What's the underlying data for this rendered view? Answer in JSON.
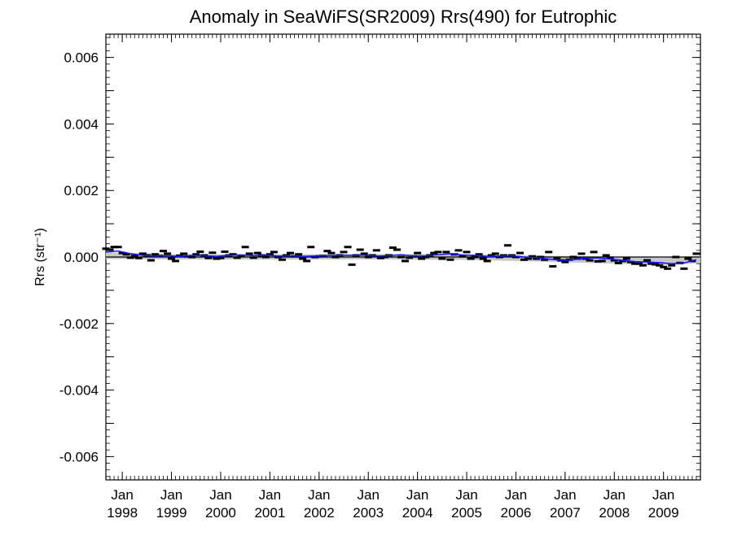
{
  "chart_data": {
    "type": "line",
    "title": "Anomaly in SeaWiFS(SR2009) Rrs(490) for Eutrophic",
    "ylabel": "Rrs (str⁻¹)",
    "xlabel": "",
    "xlim": [
      "1997-09",
      "2009-10"
    ],
    "ylim": [
      -0.0067,
      0.0067
    ],
    "yticks": [
      -0.006,
      -0.004,
      -0.002,
      0.0,
      0.002,
      0.004,
      0.006
    ],
    "ytick_labels": [
      "-0.006",
      "-0.004",
      "-0.002",
      "0.000",
      "0.002",
      "0.004",
      "0.006"
    ],
    "xticks": [
      {
        "date": "1998-01",
        "line1": "Jan",
        "line2": "1998"
      },
      {
        "date": "1999-01",
        "line1": "Jan",
        "line2": "1999"
      },
      {
        "date": "2000-01",
        "line1": "Jan",
        "line2": "2000"
      },
      {
        "date": "2001-01",
        "line1": "Jan",
        "line2": "2001"
      },
      {
        "date": "2002-01",
        "line1": "Jan",
        "line2": "2002"
      },
      {
        "date": "2003-01",
        "line1": "Jan",
        "line2": "2003"
      },
      {
        "date": "2004-01",
        "line1": "Jan",
        "line2": "2004"
      },
      {
        "date": "2005-01",
        "line1": "Jan",
        "line2": "2005"
      },
      {
        "date": "2006-01",
        "line1": "Jan",
        "line2": "2006"
      },
      {
        "date": "2007-01",
        "line1": "Jan",
        "line2": "2007"
      },
      {
        "date": "2008-01",
        "line1": "Jan",
        "line2": "2008"
      },
      {
        "date": "2009-01",
        "line1": "Jan",
        "line2": "2009"
      }
    ],
    "grid": false,
    "zero_line": true,
    "band": {
      "color": "#c8c8c8",
      "x": [
        "1997-09",
        "1999-01",
        "2001-01",
        "2003-01",
        "2005-01",
        "2006-01",
        "2007-01",
        "2008-01",
        "2009-01",
        "2009-10"
      ],
      "upper": [
        0.00014,
        9e-05,
        8e-05,
        9e-05,
        8e-05,
        5e-05,
        3e-05,
        1e-05,
        -2e-05,
        4e-05
      ],
      "lower": [
        -6e-05,
        -7e-05,
        -8e-05,
        -7e-05,
        -9e-05,
        -0.00012,
        -0.00016,
        -0.0002,
        -0.00024,
        -0.00018
      ]
    },
    "series": [
      {
        "style": "marker",
        "color": "#000000",
        "x": [
          "1997-09",
          "1997-10",
          "1997-11",
          "1997-12",
          "1998-01",
          "1998-02",
          "1998-03",
          "1998-04",
          "1998-05",
          "1998-06",
          "1998-07",
          "1998-08",
          "1998-09",
          "1998-10",
          "1998-11",
          "1998-12",
          "1999-01",
          "1999-02",
          "1999-03",
          "1999-04",
          "1999-05",
          "1999-06",
          "1999-07",
          "1999-08",
          "1999-09",
          "1999-10",
          "1999-11",
          "1999-12",
          "2000-01",
          "2000-02",
          "2000-03",
          "2000-04",
          "2000-05",
          "2000-06",
          "2000-07",
          "2000-08",
          "2000-09",
          "2000-10",
          "2000-11",
          "2000-12",
          "2001-01",
          "2001-02",
          "2001-03",
          "2001-04",
          "2001-05",
          "2001-06",
          "2001-07",
          "2001-08",
          "2001-09",
          "2001-10",
          "2001-11",
          "2001-12",
          "2002-01",
          "2002-02",
          "2002-03",
          "2002-04",
          "2002-05",
          "2002-06",
          "2002-07",
          "2002-08",
          "2002-09",
          "2002-10",
          "2002-11",
          "2002-12",
          "2003-01",
          "2003-02",
          "2003-03",
          "2003-04",
          "2003-05",
          "2003-06",
          "2003-07",
          "2003-08",
          "2003-09",
          "2003-10",
          "2003-11",
          "2003-12",
          "2004-01",
          "2004-02",
          "2004-03",
          "2004-04",
          "2004-05",
          "2004-06",
          "2004-07",
          "2004-08",
          "2004-09",
          "2004-10",
          "2004-11",
          "2004-12",
          "2005-01",
          "2005-02",
          "2005-03",
          "2005-04",
          "2005-05",
          "2005-06",
          "2005-07",
          "2005-08",
          "2005-09",
          "2005-10",
          "2005-11",
          "2005-12",
          "2006-01",
          "2006-02",
          "2006-03",
          "2006-04",
          "2006-05",
          "2006-06",
          "2006-07",
          "2006-08",
          "2006-09",
          "2006-10",
          "2006-11",
          "2006-12",
          "2007-01",
          "2007-02",
          "2007-03",
          "2007-04",
          "2007-05",
          "2007-06",
          "2007-07",
          "2007-08",
          "2007-09",
          "2007-10",
          "2007-11",
          "2007-12",
          "2008-01",
          "2008-02",
          "2008-03",
          "2008-04",
          "2008-05",
          "2008-06",
          "2008-07",
          "2008-08",
          "2008-09",
          "2008-10",
          "2008-11",
          "2008-12",
          "2009-01",
          "2009-02",
          "2009-03",
          "2009-04",
          "2009-05",
          "2009-06",
          "2009-07",
          "2009-08",
          "2009-09"
        ],
        "y": [
          0.00025,
          0.00022,
          0.0003,
          0.0003,
          0.00012,
          8e-05,
          -2e-05,
          3e-05,
          -3e-05,
          0.0001,
          5e-05,
          -0.0001,
          8e-05,
          3e-05,
          0.00018,
          0.0001,
          -5e-05,
          -0.00012,
          4e-05,
          0.0001,
          2e-05,
          0.0,
          8e-05,
          0.00016,
          5e-05,
          -3e-05,
          0.00013,
          -5e-05,
          -3e-05,
          0.00016,
          5e-05,
          8e-05,
          -2e-05,
          4e-05,
          0.0003,
          0.0001,
          -2e-05,
          0.00012,
          5e-05,
          0.0,
          8e-05,
          0.00015,
          0.0,
          -8e-05,
          5e-05,
          0.00012,
          2e-05,
          8e-05,
          -5e-05,
          -0.00012,
          0.0003,
          0.0,
          2e-05,
          3e-05,
          0.00018,
          0.00012,
          0.0,
          5e-05,
          0.00015,
          0.0003,
          -0.00023,
          5e-05,
          0.00022,
          0.0001,
          0.0,
          5e-05,
          0.0002,
          -3e-05,
          0.0,
          5e-05,
          0.00028,
          0.00022,
          0.0,
          -0.00012,
          -2e-05,
          2e-05,
          0.00012,
          -5e-05,
          0.0,
          5e-05,
          0.00012,
          0.00015,
          -5e-05,
          0.00015,
          -8e-05,
          8e-05,
          0.0002,
          2e-05,
          0.00015,
          -5e-05,
          0.0,
          8e-05,
          -5e-05,
          -0.00012,
          5e-05,
          0.0001,
          0.0,
          5e-05,
          0.00035,
          5e-05,
          0.0,
          0.00012,
          -8e-05,
          -5e-05,
          2e-05,
          -5e-05,
          0.0,
          -8e-05,
          0.00015,
          -0.00028,
          -5e-05,
          -0.0001,
          -0.00015,
          -8e-05,
          0.0,
          -5e-05,
          0.0001,
          -5e-05,
          -0.0001,
          0.00015,
          -0.00013,
          -0.00012,
          5e-05,
          -2e-05,
          -0.0001,
          -0.00018,
          -0.00012,
          -5e-05,
          -0.00015,
          -0.0002,
          -0.0002,
          -0.00025,
          -0.0001,
          -0.0002,
          -0.00022,
          -0.00025,
          -0.0003,
          -0.00035,
          -0.00025,
          0.0,
          -0.00018,
          -0.00035,
          -5e-05,
          -0.00012,
          0.0001
        ]
      },
      {
        "style": "line",
        "color": "#1a1aff",
        "x": [
          "1997-09",
          "1997-12",
          "1998-03",
          "1998-06",
          "1998-09",
          "1998-12",
          "1999-03",
          "1999-06",
          "1999-09",
          "1999-12",
          "2000-03",
          "2000-06",
          "2000-09",
          "2000-12",
          "2001-03",
          "2001-06",
          "2001-09",
          "2001-12",
          "2002-03",
          "2002-06",
          "2002-09",
          "2002-12",
          "2003-03",
          "2003-06",
          "2003-09",
          "2003-12",
          "2004-03",
          "2004-06",
          "2004-09",
          "2004-12",
          "2005-03",
          "2005-06",
          "2005-09",
          "2005-12",
          "2006-03",
          "2006-06",
          "2006-09",
          "2006-12",
          "2007-03",
          "2007-06",
          "2007-09",
          "2007-12",
          "2008-03",
          "2008-06",
          "2008-09",
          "2008-12",
          "2009-03",
          "2009-06",
          "2009-09"
        ],
        "y": [
          0.00015,
          0.00018,
          0.0001,
          5e-05,
          3e-05,
          4e-05,
          2e-05,
          5e-05,
          4e-05,
          2e-05,
          5e-05,
          6e-05,
          4e-05,
          6e-05,
          3e-05,
          4e-05,
          2e-05,
          3e-05,
          4e-05,
          5e-05,
          5e-05,
          6e-05,
          3e-05,
          4e-05,
          7e-05,
          3e-05,
          4e-05,
          7e-05,
          0.0001,
          6e-05,
          5e-05,
          2e-05,
          3e-05,
          4e-05,
          0.0,
          -2e-05,
          -6e-05,
          -0.0001,
          -8e-05,
          -3e-05,
          -3e-05,
          -6e-05,
          -0.0001,
          -0.00014,
          -0.00015,
          -0.00017,
          -0.0002,
          -0.00018,
          -8e-05
        ]
      }
    ]
  }
}
